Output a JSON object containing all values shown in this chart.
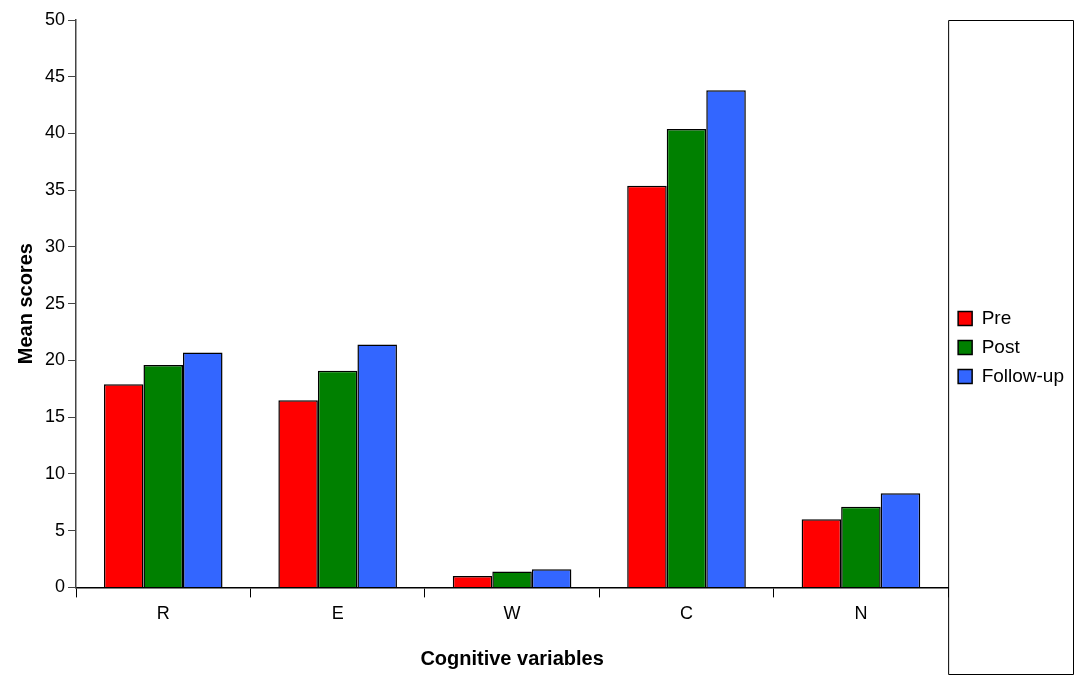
{
  "chart_data": {
    "type": "bar",
    "xlabel": "Cognitive variables",
    "ylabel": "Mean scores",
    "categories": [
      "R",
      "E",
      "W",
      "C",
      "N"
    ],
    "series": [
      {
        "name": "Pre",
        "color": "#ff0000",
        "values": [
          17.9,
          16.5,
          1.0,
          35.4,
          6.0
        ]
      },
      {
        "name": "Post",
        "color": "#008000",
        "values": [
          19.6,
          19.1,
          1.4,
          40.4,
          7.1
        ]
      },
      {
        "name": "Follow-up",
        "color": "#3366ff",
        "values": [
          20.7,
          21.4,
          1.6,
          43.8,
          8.3
        ]
      }
    ],
    "ylim": [
      0,
      50
    ],
    "yticks": [
      0,
      5,
      10,
      15,
      20,
      25,
      30,
      35,
      40,
      45,
      50
    ],
    "grid": false,
    "legend": "right"
  }
}
